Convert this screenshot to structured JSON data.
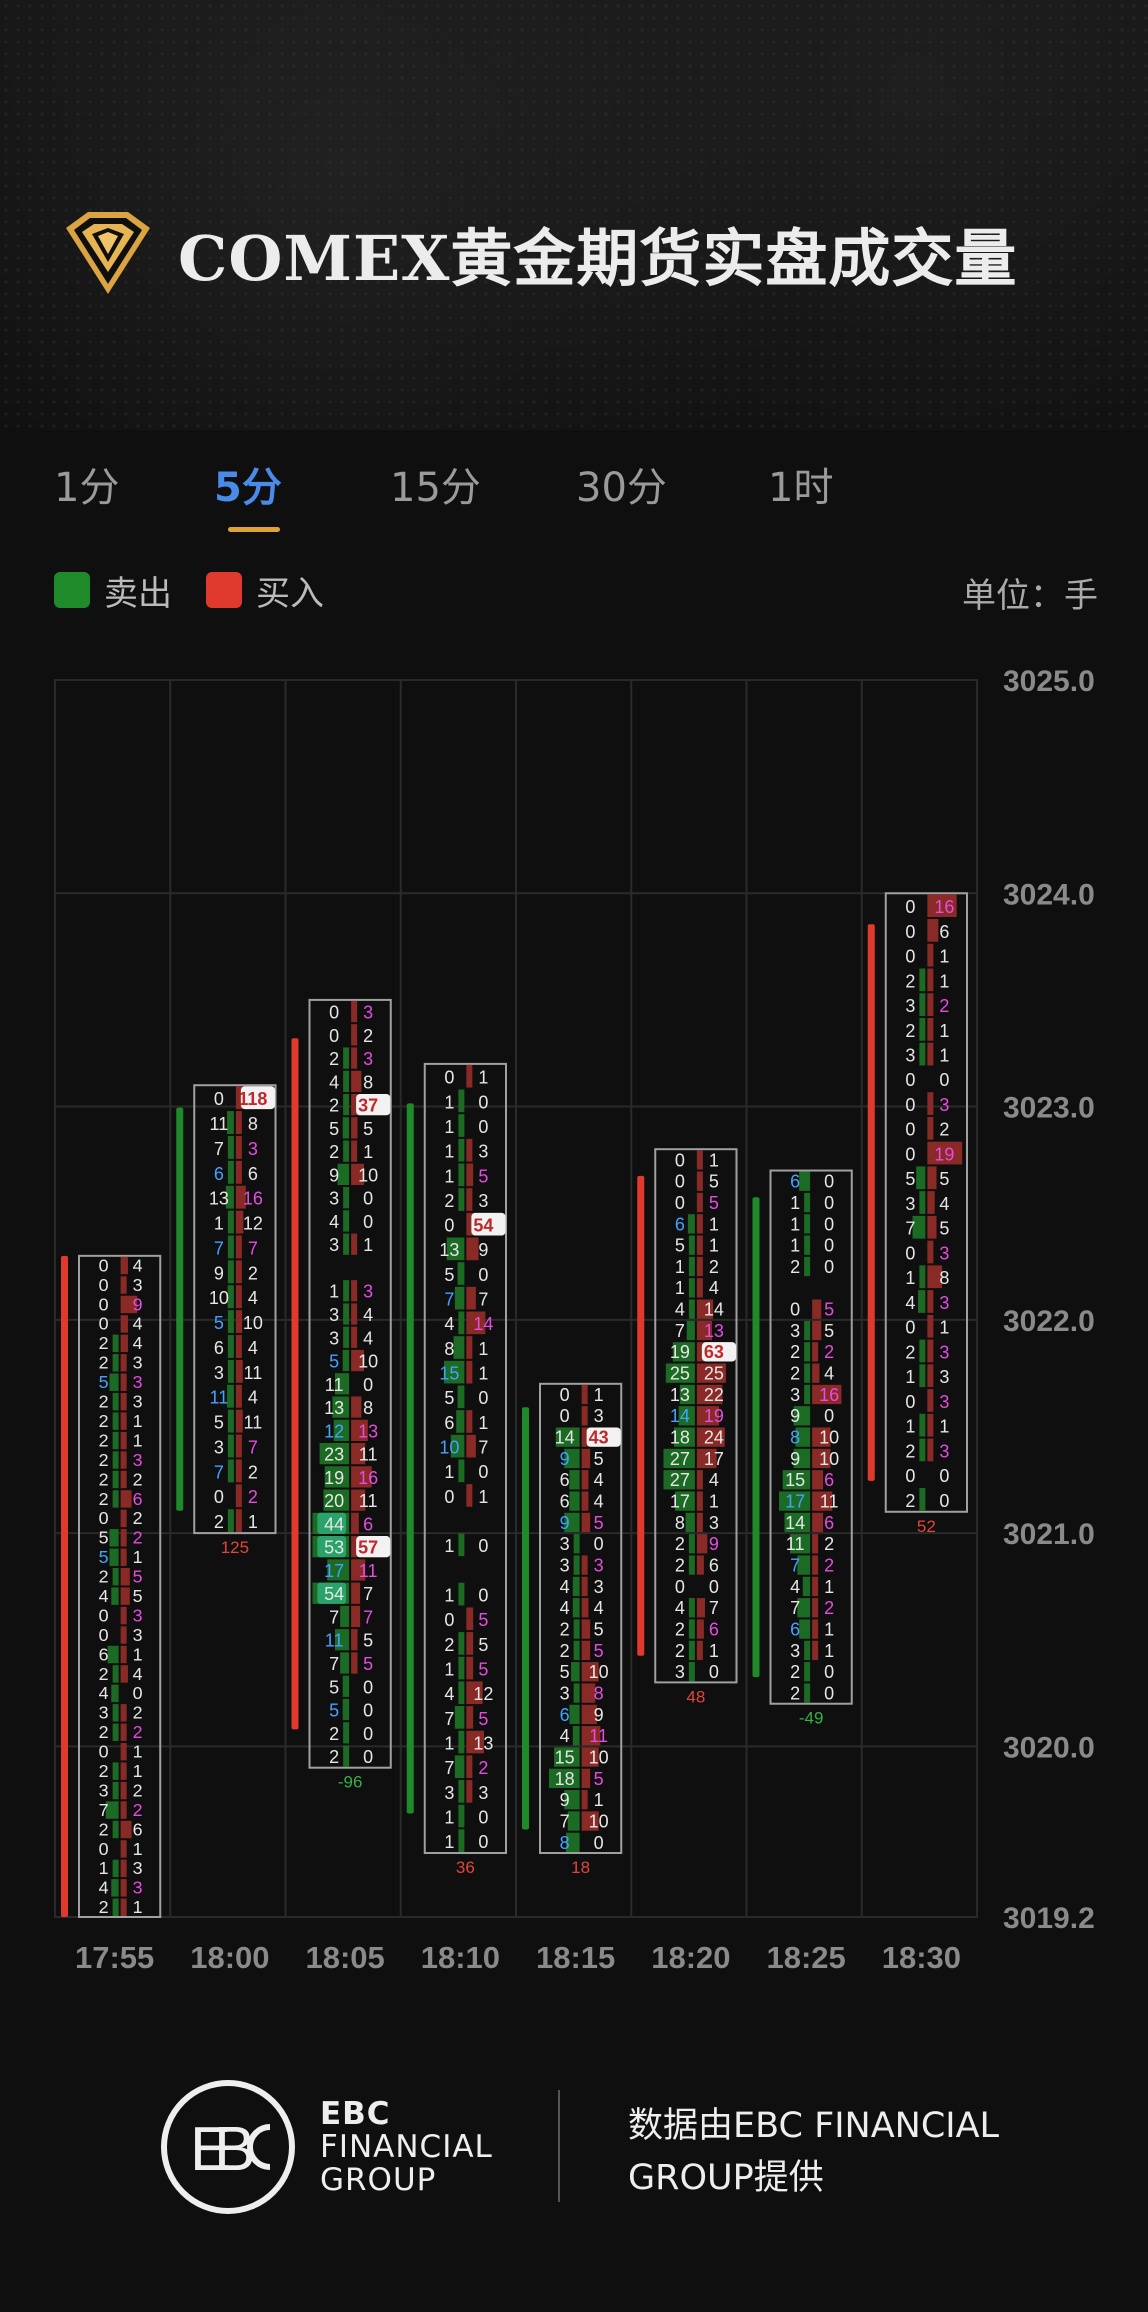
{
  "header": {
    "title": "COMEX黄金期货实盘成交量"
  },
  "tabs": [
    {
      "label": "1分",
      "active": false
    },
    {
      "label": "5分",
      "active": true
    },
    {
      "label": "15分",
      "active": false
    },
    {
      "label": "30分",
      "active": false
    },
    {
      "label": "1时",
      "active": false
    }
  ],
  "legend": {
    "sell": "卖出",
    "buy": "买入",
    "unit": "单位：手"
  },
  "colors": {
    "sell": "#1f8a2a",
    "buy": "#e03a2f",
    "accent": "#4a8bea",
    "underline": "#e0a237",
    "bg": "#0f0f0f"
  },
  "chart_data": {
    "type": "table",
    "y_ticks": [
      "3025.0",
      "3024.0",
      "3023.0",
      "3022.0",
      "3021.0",
      "3020.0",
      "3019.2"
    ],
    "ylim": [
      3019.2,
      3025.0
    ],
    "x_ticks": [
      "17:55",
      "18:00",
      "18:05",
      "18:10",
      "18:15",
      "18:20",
      "18:25",
      "18:30"
    ],
    "columns": [
      {
        "time": "17:55",
        "body_dir": "up",
        "high": 3022.3,
        "low": 3019.2,
        "delta": "",
        "sell": [
          0,
          0,
          0,
          0,
          2,
          2,
          5,
          2,
          2,
          2,
          2,
          2,
          2,
          0,
          5,
          5,
          2,
          4,
          0,
          0,
          6,
          2,
          4,
          3,
          2,
          0,
          2,
          3,
          7,
          2,
          0,
          1,
          4,
          2
        ],
        "buy": [
          4,
          3,
          9,
          4,
          4,
          3,
          3,
          3,
          1,
          1,
          3,
          2,
          6,
          2,
          2,
          1,
          5,
          5,
          3,
          3,
          1,
          4,
          0,
          2,
          2,
          1,
          1,
          2,
          2,
          6,
          1,
          3,
          3,
          1
        ]
      },
      {
        "time": "18:00",
        "body_dir": "down",
        "high": 3023.1,
        "low": 3021.0,
        "delta": "125",
        "sell": [
          0,
          11,
          7,
          6,
          13,
          1,
          7,
          9,
          10,
          5,
          6,
          3,
          11,
          5,
          3,
          7,
          0,
          2
        ],
        "buy": [
          118,
          8,
          3,
          6,
          16,
          12,
          7,
          2,
          4,
          10,
          4,
          11,
          4,
          11,
          7,
          2,
          2,
          1
        ]
      },
      {
        "time": "18:05",
        "body_dir": "up",
        "high": 3023.5,
        "low": 3019.9,
        "delta": "-96",
        "sell": [
          0,
          0,
          2,
          4,
          2,
          5,
          2,
          9,
          3,
          4,
          3,
          "",
          1,
          3,
          3,
          5,
          11,
          13,
          12,
          23,
          19,
          20,
          44,
          53,
          17,
          54,
          7,
          11,
          7,
          5,
          5,
          2,
          2
        ],
        "buy": [
          3,
          2,
          3,
          8,
          37,
          5,
          1,
          10,
          0,
          0,
          1,
          "",
          3,
          4,
          4,
          10,
          0,
          8,
          13,
          11,
          16,
          11,
          6,
          57,
          11,
          7,
          7,
          5,
          5,
          0,
          0,
          0,
          0
        ]
      },
      {
        "time": "18:10",
        "body_dir": "down",
        "high": 3023.2,
        "low": 3019.5,
        "delta": "36",
        "sell": [
          0,
          1,
          1,
          1,
          1,
          2,
          0,
          13,
          5,
          7,
          4,
          8,
          15,
          5,
          6,
          10,
          1,
          0,
          "",
          1,
          "",
          1,
          0,
          2,
          1,
          4,
          7,
          1,
          7,
          3,
          1,
          1
        ],
        "buy": [
          1,
          0,
          0,
          3,
          5,
          3,
          54,
          9,
          0,
          7,
          14,
          1,
          1,
          0,
          1,
          7,
          0,
          1,
          "",
          0,
          "",
          0,
          5,
          5,
          5,
          12,
          5,
          13,
          2,
          3,
          0,
          0
        ]
      },
      {
        "time": "18:15",
        "body_dir": "down",
        "high": 3021.7,
        "low": 3019.5,
        "delta": "18",
        "sell": [
          0,
          0,
          14,
          9,
          6,
          6,
          9,
          3,
          3,
          4,
          4,
          2,
          2,
          5,
          3,
          6,
          4,
          15,
          18,
          9,
          7,
          8
        ],
        "buy": [
          1,
          3,
          43,
          5,
          4,
          4,
          5,
          0,
          3,
          3,
          4,
          5,
          5,
          10,
          8,
          9,
          11,
          10,
          5,
          1,
          10,
          0
        ]
      },
      {
        "time": "18:20",
        "body_dir": "up",
        "high": 3022.8,
        "low": 3020.3,
        "delta": "48",
        "sell": [
          0,
          0,
          0,
          6,
          5,
          1,
          1,
          4,
          7,
          19,
          25,
          13,
          14,
          18,
          27,
          27,
          17,
          8,
          2,
          2,
          0,
          4,
          2,
          2,
          3
        ],
        "buy": [
          1,
          5,
          5,
          1,
          1,
          2,
          4,
          14,
          13,
          63,
          25,
          22,
          19,
          24,
          17,
          4,
          1,
          3,
          9,
          6,
          0,
          7,
          6,
          1,
          0
        ]
      },
      {
        "time": "18:25",
        "body_dir": "down",
        "high": 3022.7,
        "low": 3020.2,
        "delta": "-49",
        "sell": [
          6,
          1,
          1,
          1,
          2,
          "",
          0,
          3,
          2,
          2,
          3,
          9,
          8,
          9,
          15,
          17,
          14,
          11,
          7,
          4,
          7,
          6,
          3,
          2,
          2
        ],
        "buy": [
          0,
          0,
          0,
          0,
          0,
          "",
          5,
          5,
          2,
          4,
          16,
          0,
          10,
          10,
          6,
          11,
          6,
          2,
          2,
          1,
          2,
          1,
          1,
          0,
          0
        ]
      },
      {
        "time": "18:30",
        "body_dir": "up",
        "high": 3024.0,
        "low": 3021.1,
        "delta": "52",
        "sell": [
          0,
          0,
          0,
          2,
          3,
          2,
          3,
          0,
          0,
          0,
          0,
          5,
          3,
          7,
          0,
          1,
          4,
          0,
          2,
          1,
          0,
          1,
          2,
          0,
          2
        ],
        "buy": [
          16,
          6,
          1,
          1,
          2,
          1,
          1,
          0,
          3,
          2,
          19,
          5,
          4,
          5,
          3,
          8,
          3,
          1,
          3,
          3,
          3,
          1,
          3,
          0,
          0
        ]
      }
    ]
  },
  "footer": {
    "brand_line1": "EBC",
    "brand_line2": "FINANCIAL",
    "brand_line3": "GROUP",
    "credit": "数据由EBC FINANCIAL GROUP提供"
  }
}
